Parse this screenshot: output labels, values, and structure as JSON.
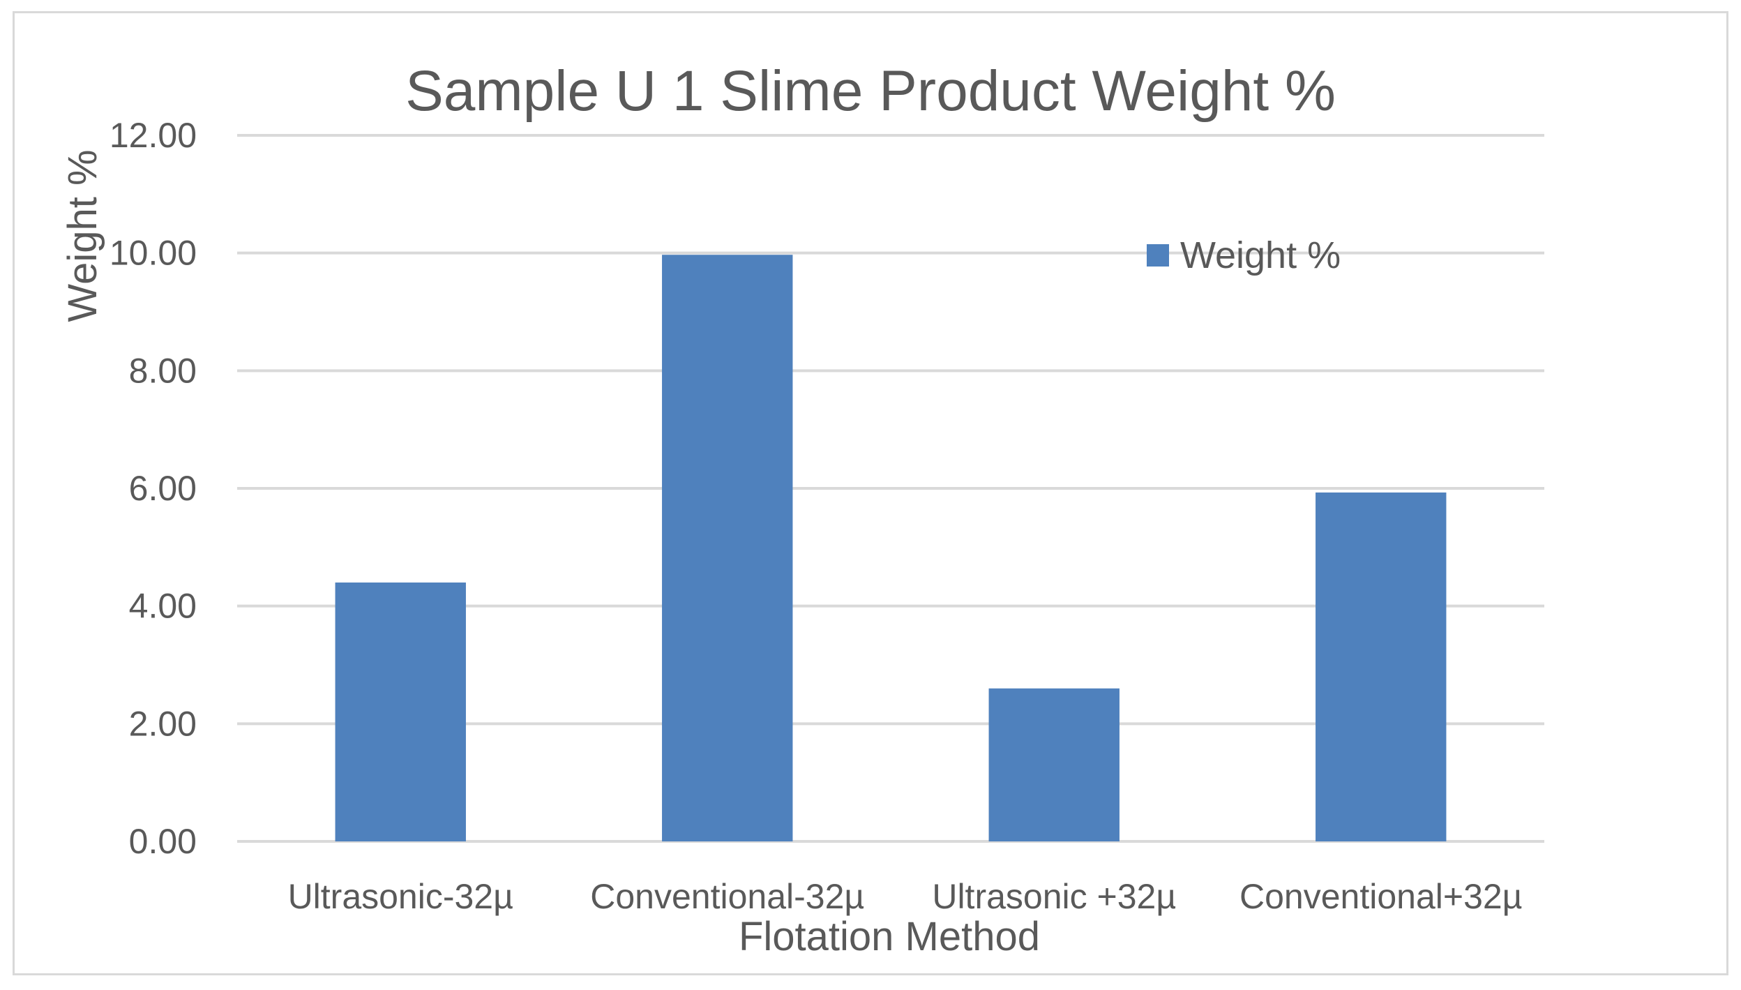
{
  "chart_data": {
    "type": "bar",
    "title": "Sample U 1 Slime Product Weight %",
    "xlabel": "Flotation Method",
    "ylabel": "Weight %",
    "categories": [
      "Ultrasonic-32µ",
      "Conventional-32µ",
      "Ultrasonic +32µ",
      "Conventional+32µ"
    ],
    "series": [
      {
        "name": "Weight %",
        "values": [
          4.4,
          9.97,
          2.6,
          5.93
        ],
        "color": "#4f81bd"
      }
    ],
    "ylim": [
      0,
      12
    ],
    "yticks": [
      "0.00",
      "2.00",
      "4.00",
      "6.00",
      "8.00",
      "10.00",
      "12.00"
    ],
    "grid": true,
    "legend_position": "top-right"
  }
}
